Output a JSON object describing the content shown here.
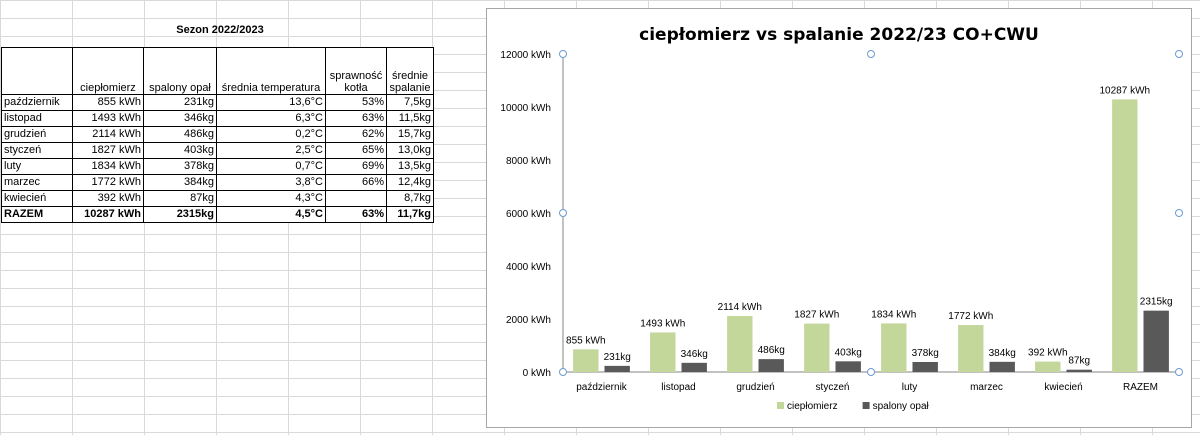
{
  "sheet": {
    "title": "Sezon 2022/2023",
    "headers": [
      "",
      "ciepłomierz",
      "spalony opał",
      "średnia temperatura",
      "sprawność kotła",
      "średnie spalanie"
    ],
    "rows": [
      [
        "październik",
        "855 kWh",
        "231kg",
        "13,6°C",
        "53%",
        "7,5kg"
      ],
      [
        "listopad",
        "1493 kWh",
        "346kg",
        "6,3°C",
        "63%",
        "11,5kg"
      ],
      [
        "grudzień",
        "2114 kWh",
        "486kg",
        "0,2°C",
        "62%",
        "15,7kg"
      ],
      [
        "styczeń",
        "1827 kWh",
        "403kg",
        "2,5°C",
        "65%",
        "13,0kg"
      ],
      [
        "luty",
        "1834 kWh",
        "378kg",
        "0,7°C",
        "69%",
        "13,5kg"
      ],
      [
        "marzec",
        "1772 kWh",
        "384kg",
        "3,8°C",
        "66%",
        "12,4kg"
      ],
      [
        "kwiecień",
        "392 kWh",
        "87kg",
        "4,3°C",
        "",
        "8,7kg"
      ]
    ],
    "total": [
      "RAZEM",
      "10287 kWh",
      "2315kg",
      "4,5°C",
      "63%",
      "11,7kg"
    ]
  },
  "chart_data": {
    "type": "bar",
    "title": "ciepłomierz vs spalanie 2022/23 CO+CWU",
    "categories": [
      "październik",
      "listopad",
      "grudzień",
      "styczeń",
      "luty",
      "marzec",
      "kwiecień",
      "RAZEM"
    ],
    "series": [
      {
        "name": "ciepłomierz",
        "color": "#c4d79b",
        "values": [
          855,
          1493,
          2114,
          1827,
          1834,
          1772,
          392,
          10287
        ],
        "labels": [
          "855 kWh",
          "1493 kWh",
          "2114 kWh",
          "1827 kWh",
          "1834 kWh",
          "1772 kWh",
          "392 kWh",
          "10287 kWh"
        ]
      },
      {
        "name": "spalony opał",
        "color": "#595959",
        "values": [
          231,
          346,
          486,
          403,
          378,
          384,
          87,
          2315
        ],
        "labels": [
          "231kg",
          "346kg",
          "486kg",
          "403kg",
          "378kg",
          "384kg",
          "87kg",
          "2315kg"
        ]
      }
    ],
    "ylim": [
      0,
      12000
    ],
    "yticks": [
      0,
      2000,
      4000,
      6000,
      8000,
      10000,
      12000
    ],
    "ytick_labels": [
      "0 kWh",
      "2000 kWh",
      "4000 kWh",
      "6000 kWh",
      "8000 kWh",
      "10000 kWh",
      "12000 kWh"
    ],
    "legend_position": "bottom",
    "grid": false
  }
}
